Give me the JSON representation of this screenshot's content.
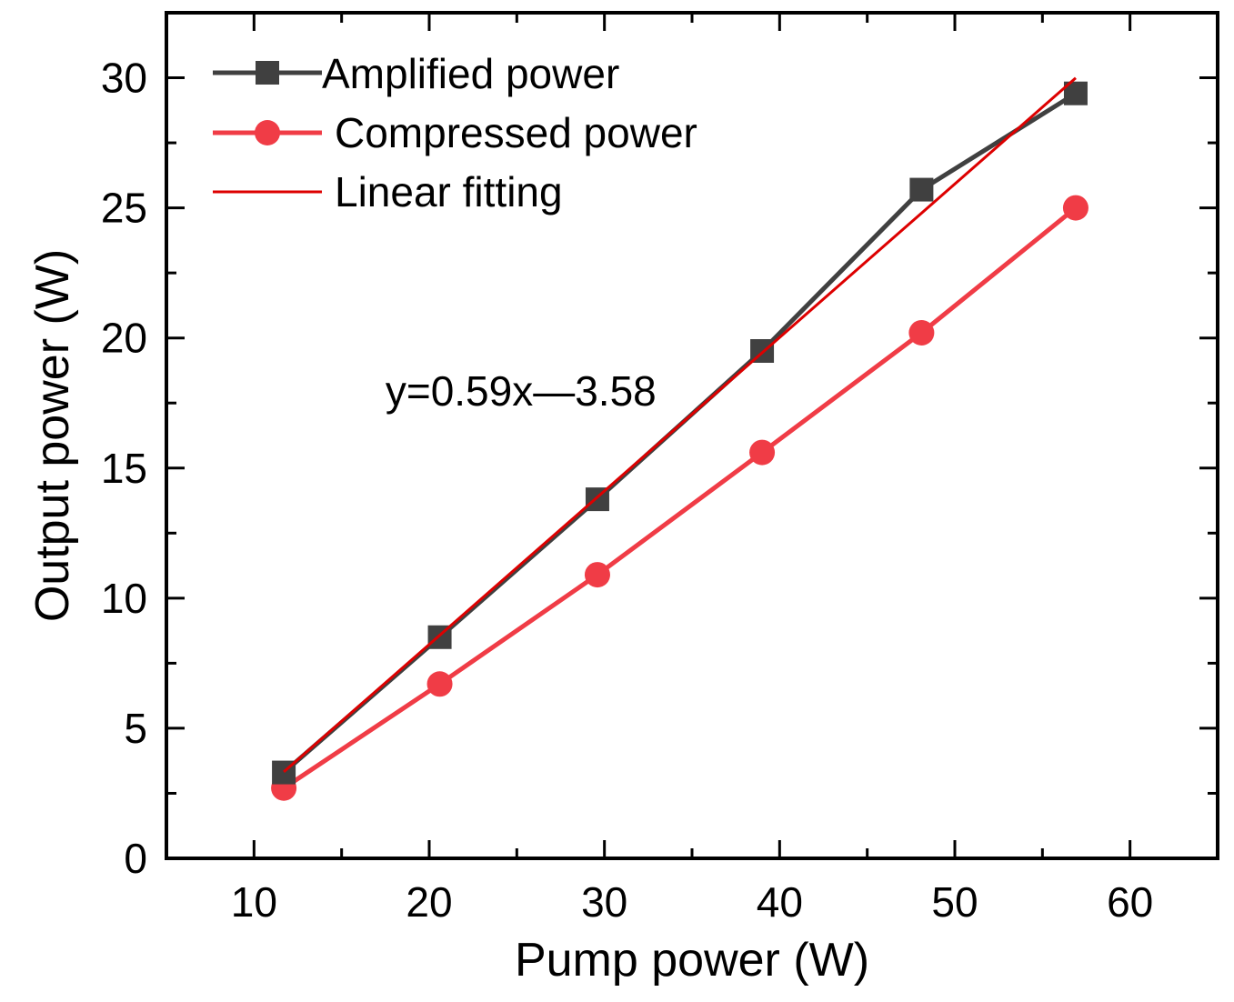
{
  "chart_data": {
    "type": "line",
    "title": "",
    "xlabel": "Pump power (W)",
    "ylabel": "Output power (W)",
    "xlim": [
      5,
      65
    ],
    "ylim": [
      0,
      32.5
    ],
    "xticks": [
      10,
      20,
      30,
      40,
      50,
      60
    ],
    "yticks": [
      0,
      5,
      10,
      15,
      20,
      25,
      30
    ],
    "grid": false,
    "legend_position": "top-left",
    "x": [
      11.7,
      20.6,
      29.6,
      39.0,
      48.1,
      56.9
    ],
    "series": [
      {
        "name": "Amplified power",
        "color": "#404040",
        "marker": "square",
        "values": [
          3.3,
          8.5,
          13.8,
          19.5,
          25.7,
          29.4
        ]
      },
      {
        "name": "Compressed power",
        "color": "#f03c46",
        "marker": "circle",
        "values": [
          2.7,
          6.7,
          10.9,
          15.6,
          20.2,
          25.0
        ]
      }
    ],
    "fit": {
      "name": "Linear fitting",
      "color": "#dd0000",
      "slope": 0.59,
      "intercept": -3.58,
      "x_range": [
        11.7,
        56.9
      ]
    },
    "annotations": [
      {
        "text": "y=0.59x—3.58",
        "x": 17.5,
        "y": 17.4
      }
    ]
  }
}
